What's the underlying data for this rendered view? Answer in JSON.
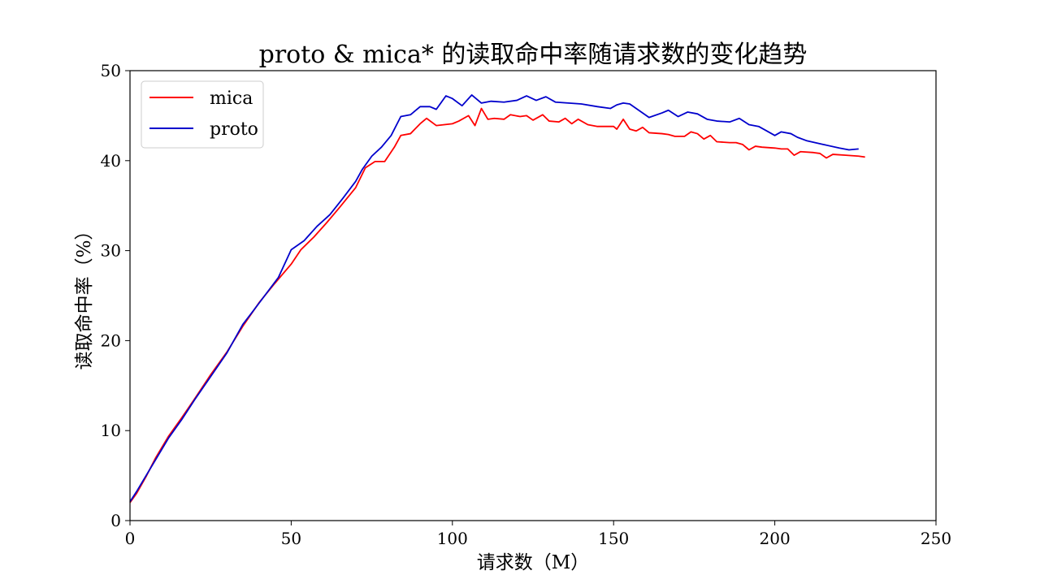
{
  "chart_data": {
    "type": "line",
    "title": "proto & mica* 的读取命中率随请求数的变化趋势",
    "xlabel": "请求数（M）",
    "ylabel": "读取命中率（%）",
    "xlim": [
      0,
      250
    ],
    "ylim": [
      0,
      50
    ],
    "xticks": [
      0,
      50,
      100,
      150,
      200,
      250
    ],
    "yticks": [
      0,
      10,
      20,
      30,
      40,
      50
    ],
    "grid": false,
    "legend_position": "top-left",
    "series": [
      {
        "name": "mica",
        "color": "#ff0000",
        "points": [
          [
            0,
            2.0
          ],
          [
            2,
            3.0
          ],
          [
            5,
            4.9
          ],
          [
            8,
            7.0
          ],
          [
            12,
            9.4
          ],
          [
            16,
            11.4
          ],
          [
            20,
            13.5
          ],
          [
            25,
            16.2
          ],
          [
            30,
            18.7
          ],
          [
            35,
            21.6
          ],
          [
            40,
            24.2
          ],
          [
            45,
            26.4
          ],
          [
            50,
            28.5
          ],
          [
            53,
            30.1
          ],
          [
            57,
            31.5
          ],
          [
            61,
            33.1
          ],
          [
            65,
            34.8
          ],
          [
            70,
            37.0
          ],
          [
            73,
            39.2
          ],
          [
            76,
            39.9
          ],
          [
            79,
            39.9
          ],
          [
            82,
            41.5
          ],
          [
            84,
            42.8
          ],
          [
            87,
            43.0
          ],
          [
            90,
            44.1
          ],
          [
            92,
            44.7
          ],
          [
            95,
            43.9
          ],
          [
            100,
            44.1
          ],
          [
            102,
            44.4
          ],
          [
            105,
            45.0
          ],
          [
            107,
            43.9
          ],
          [
            109,
            45.8
          ],
          [
            111,
            44.6
          ],
          [
            113,
            44.7
          ],
          [
            116,
            44.6
          ],
          [
            118,
            45.1
          ],
          [
            121,
            44.9
          ],
          [
            123,
            45.0
          ],
          [
            125,
            44.5
          ],
          [
            128,
            45.1
          ],
          [
            130,
            44.4
          ],
          [
            133,
            44.3
          ],
          [
            135,
            44.7
          ],
          [
            137,
            44.1
          ],
          [
            139,
            44.6
          ],
          [
            142,
            44.0
          ],
          [
            145,
            43.8
          ],
          [
            148,
            43.8
          ],
          [
            150,
            43.8
          ],
          [
            151,
            43.5
          ],
          [
            153,
            44.6
          ],
          [
            155,
            43.5
          ],
          [
            157,
            43.3
          ],
          [
            159,
            43.7
          ],
          [
            161,
            43.1
          ],
          [
            165,
            43.0
          ],
          [
            167,
            42.9
          ],
          [
            169,
            42.7
          ],
          [
            172,
            42.7
          ],
          [
            174,
            43.2
          ],
          [
            176,
            43.0
          ],
          [
            178,
            42.4
          ],
          [
            180,
            42.8
          ],
          [
            182,
            42.1
          ],
          [
            186,
            42.0
          ],
          [
            188,
            42.0
          ],
          [
            190,
            41.8
          ],
          [
            192,
            41.2
          ],
          [
            194,
            41.6
          ],
          [
            196,
            41.5
          ],
          [
            200,
            41.4
          ],
          [
            202,
            41.3
          ],
          [
            204,
            41.3
          ],
          [
            206,
            40.6
          ],
          [
            208,
            41.0
          ],
          [
            212,
            40.9
          ],
          [
            214,
            40.8
          ],
          [
            216,
            40.3
          ],
          [
            218,
            40.7
          ],
          [
            222,
            40.6
          ],
          [
            226,
            40.5
          ],
          [
            228,
            40.4
          ]
        ]
      },
      {
        "name": "proto",
        "color": "#0000cc",
        "points": [
          [
            0,
            2.1
          ],
          [
            2,
            3.2
          ],
          [
            5,
            5.0
          ],
          [
            8,
            6.8
          ],
          [
            12,
            9.2
          ],
          [
            16,
            11.2
          ],
          [
            20,
            13.4
          ],
          [
            25,
            16.0
          ],
          [
            30,
            18.6
          ],
          [
            35,
            21.8
          ],
          [
            38,
            23.2
          ],
          [
            42,
            25.1
          ],
          [
            46,
            27.0
          ],
          [
            50,
            30.1
          ],
          [
            54,
            31.1
          ],
          [
            58,
            32.7
          ],
          [
            62,
            34.0
          ],
          [
            66,
            35.8
          ],
          [
            70,
            37.7
          ],
          [
            72,
            39.0
          ],
          [
            75,
            40.5
          ],
          [
            78,
            41.5
          ],
          [
            81,
            42.8
          ],
          [
            84,
            44.9
          ],
          [
            87,
            45.1
          ],
          [
            90,
            46.0
          ],
          [
            93,
            46.0
          ],
          [
            95,
            45.7
          ],
          [
            98,
            47.2
          ],
          [
            100,
            46.9
          ],
          [
            103,
            46.1
          ],
          [
            106,
            47.3
          ],
          [
            109,
            46.4
          ],
          [
            112,
            46.6
          ],
          [
            116,
            46.5
          ],
          [
            120,
            46.7
          ],
          [
            123,
            47.2
          ],
          [
            126,
            46.7
          ],
          [
            129,
            47.1
          ],
          [
            132,
            46.5
          ],
          [
            136,
            46.4
          ],
          [
            140,
            46.3
          ],
          [
            145,
            46.0
          ],
          [
            149,
            45.8
          ],
          [
            151,
            46.2
          ],
          [
            153,
            46.4
          ],
          [
            155,
            46.3
          ],
          [
            161,
            44.8
          ],
          [
            165,
            45.3
          ],
          [
            167,
            45.6
          ],
          [
            170,
            44.9
          ],
          [
            173,
            45.4
          ],
          [
            176,
            45.2
          ],
          [
            179,
            44.6
          ],
          [
            182,
            44.4
          ],
          [
            186,
            44.3
          ],
          [
            189,
            44.7
          ],
          [
            192,
            44.0
          ],
          [
            195,
            43.8
          ],
          [
            198,
            43.2
          ],
          [
            200,
            42.8
          ],
          [
            202,
            43.2
          ],
          [
            205,
            43.0
          ],
          [
            207,
            42.6
          ],
          [
            210,
            42.2
          ],
          [
            215,
            41.8
          ],
          [
            220,
            41.4
          ],
          [
            223,
            41.2
          ],
          [
            226,
            41.3
          ]
        ]
      }
    ]
  }
}
